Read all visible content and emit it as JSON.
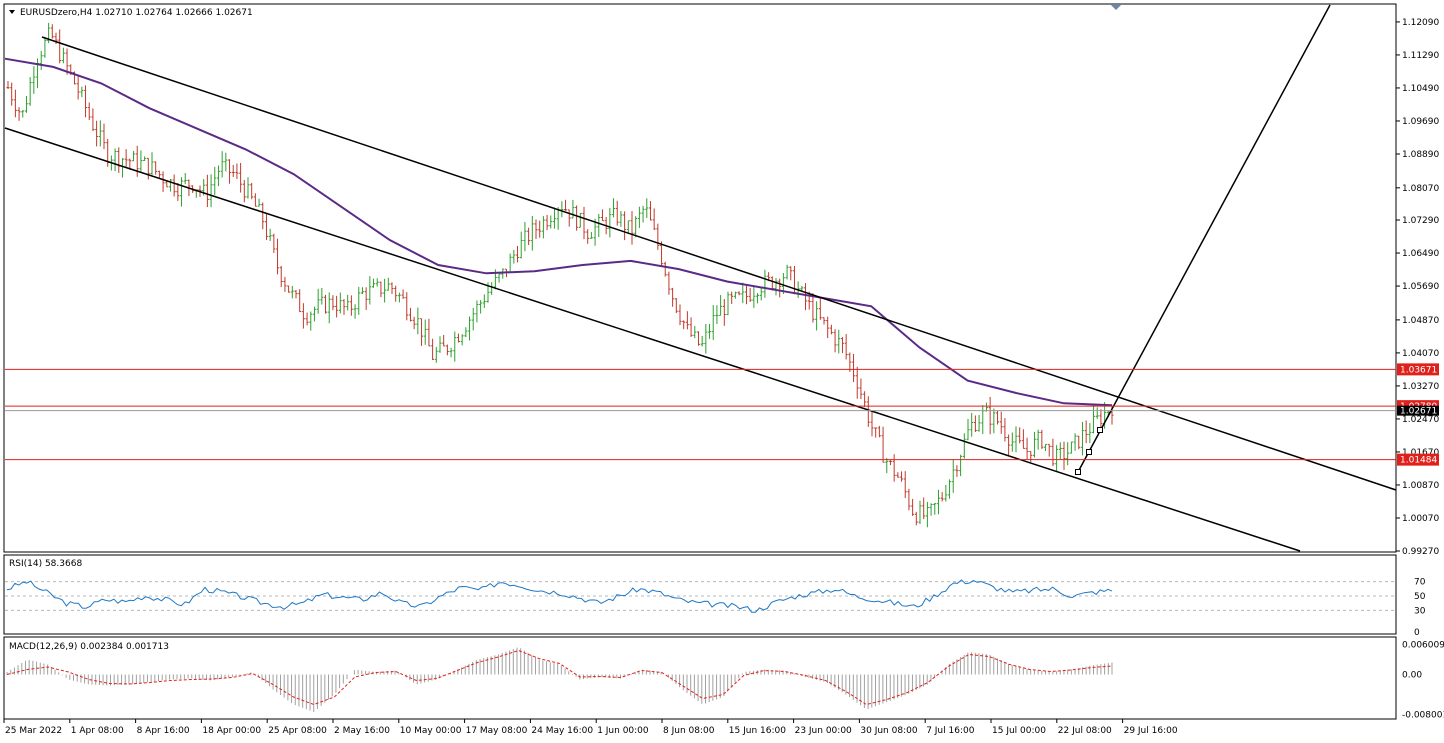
{
  "header": {
    "symbol_info": "EURUSDzero,H4  1.02710 1.02764 1.02666 1.02671"
  },
  "colors": {
    "bull": "#2ca02c",
    "bear": "#c0392b",
    "ma": "#5b2a86",
    "level": "#e0211b",
    "rsi": "#1f77c4",
    "macd_hist": "#a0a0a0",
    "macd_signal": "#e0211b"
  },
  "chart_data": {
    "type": "candlestick",
    "symbol": "EURUSDzero",
    "timeframe": "H4",
    "price_axis": {
      "range": [
        0.9927,
        1.125
      ],
      "ticks": [
        "1.12090",
        "1.11290",
        "1.10490",
        "1.09690",
        "1.08890",
        "1.08070",
        "1.07290",
        "1.06490",
        "1.05690",
        "1.04870",
        "1.04070",
        "1.03270",
        "1.02470",
        "1.01670",
        "1.00870",
        "1.00070",
        "0.99270"
      ]
    },
    "time_labels": [
      "25 Mar 2022",
      "1 Apr 08:00",
      "8 Apr 16:00",
      "18 Apr 00:00",
      "25 Apr 08:00",
      "2 May 16:00",
      "10 May 00:00",
      "17 May 08:00",
      "24 May 16:00",
      "1 Jun 00:00",
      "8 Jun 08:00",
      "15 Jun 16:00",
      "23 Jun 00:00",
      "30 Jun 08:00",
      "7 Jul 16:00",
      "15 Jul 00:00",
      "22 Jul 08:00",
      "29 Jul 16:00"
    ],
    "price_path": [
      1.105,
      1.098,
      1.112,
      1.118,
      1.111,
      1.104,
      1.096,
      1.089,
      1.088,
      1.087,
      1.086,
      1.083,
      1.081,
      1.082,
      1.079,
      1.086,
      1.084,
      1.079,
      1.073,
      1.062,
      1.055,
      1.05,
      1.052,
      1.053,
      1.051,
      1.055,
      1.056,
      1.057,
      1.053,
      1.048,
      1.04,
      1.042,
      1.046,
      1.051,
      1.056,
      1.06,
      1.066,
      1.07,
      1.073,
      1.077,
      1.074,
      1.07,
      1.072,
      1.074,
      1.07,
      1.076,
      1.066,
      1.054,
      1.046,
      1.042,
      1.05,
      1.053,
      1.054,
      1.057,
      1.058,
      1.06,
      1.055,
      1.05,
      1.046,
      1.042,
      1.034,
      1.023,
      1.015,
      1.01,
      1.002,
      1.001,
      1.006,
      1.014,
      1.023,
      1.026,
      1.024,
      1.019,
      1.017,
      1.02,
      1.015,
      1.017,
      1.021,
      1.0245,
      1.0278
    ],
    "levels": [
      {
        "value": 1.03671,
        "label": "1.03671"
      },
      {
        "value": 1.0278,
        "label": "1.02780"
      },
      {
        "value": 1.01484,
        "label": "1.01484"
      }
    ],
    "current_price": 1.02671,
    "current_price_label": "1.02671",
    "moving_average": [
      1.112,
      1.11,
      1.106,
      1.1,
      1.095,
      1.09,
      1.084,
      1.076,
      1.068,
      1.062,
      1.06,
      1.0605,
      1.062,
      1.063,
      1.061,
      1.058,
      1.056,
      1.054,
      1.052,
      1.042,
      1.034,
      1.031,
      1.0285,
      1.028
    ],
    "rsi": {
      "label": "RSI(14) 58.3668",
      "range": [
        0,
        100
      ],
      "ticks": [
        "70",
        "50",
        "30",
        "0"
      ],
      "levels": [
        70,
        50,
        30
      ],
      "values": [
        60,
        70,
        55,
        40,
        35,
        45,
        42,
        50,
        45,
        38,
        60,
        55,
        48,
        40,
        35,
        40,
        52,
        48,
        45,
        55,
        40,
        35,
        50,
        62,
        58,
        70,
        65,
        58,
        55,
        48,
        40,
        50,
        60,
        55,
        45,
        40,
        38,
        35,
        30,
        42,
        50,
        55,
        60,
        50,
        45,
        40,
        35,
        50,
        68,
        72,
        62,
        55,
        58,
        60,
        50,
        55,
        58
      ]
    },
    "macd": {
      "label": "MACD(12,26,9) 0.002384 0.001713",
      "range": [
        -0.0085,
        0.0065
      ],
      "ticks": [
        "0.006009",
        "0.00",
        "-0.008001"
      ],
      "histogram": [
        0.0005,
        0.003,
        0.002,
        -0.001,
        -0.002,
        -0.0022,
        -0.002,
        -0.0015,
        -0.001,
        -0.0008,
        -0.0012,
        -0.0005,
        0.0005,
        -0.003,
        -0.006,
        -0.0075,
        -0.004,
        0.001,
        0.0005,
        0.0008,
        -0.002,
        -0.001,
        0.001,
        0.003,
        0.004,
        0.0055,
        0.003,
        0.002,
        -0.001,
        -0.0005,
        -0.0008,
        0.001,
        0.0005,
        -0.003,
        -0.006,
        -0.0045,
        0.0005,
        0.001,
        0.0008,
        -0.0005,
        -0.0015,
        -0.004,
        -0.007,
        -0.0055,
        -0.004,
        -0.002,
        0.002,
        0.0045,
        0.004,
        0.002,
        0.001,
        0.0005,
        0.001,
        0.0018,
        0.0024
      ],
      "signal": [
        0.0,
        0.001,
        0.0015,
        0.0005,
        -0.001,
        -0.0018,
        -0.0019,
        -0.0016,
        -0.0012,
        -0.001,
        -0.0009,
        -0.0006,
        0.0002,
        -0.002,
        -0.0045,
        -0.006,
        -0.0045,
        -0.0005,
        0.0004,
        0.0006,
        -0.0012,
        -0.0008,
        0.0008,
        0.0024,
        0.0035,
        0.0048,
        0.0032,
        0.0022,
        -0.0005,
        -0.0004,
        -0.0006,
        0.0008,
        0.0004,
        -0.0022,
        -0.0048,
        -0.004,
        -0.0002,
        0.0008,
        0.0006,
        -0.0002,
        -0.0012,
        -0.0034,
        -0.006,
        -0.005,
        -0.0036,
        -0.0016,
        0.0016,
        0.004,
        0.0036,
        0.002,
        0.001,
        0.0006,
        0.0009,
        0.0014,
        0.0017
      ]
    }
  }
}
